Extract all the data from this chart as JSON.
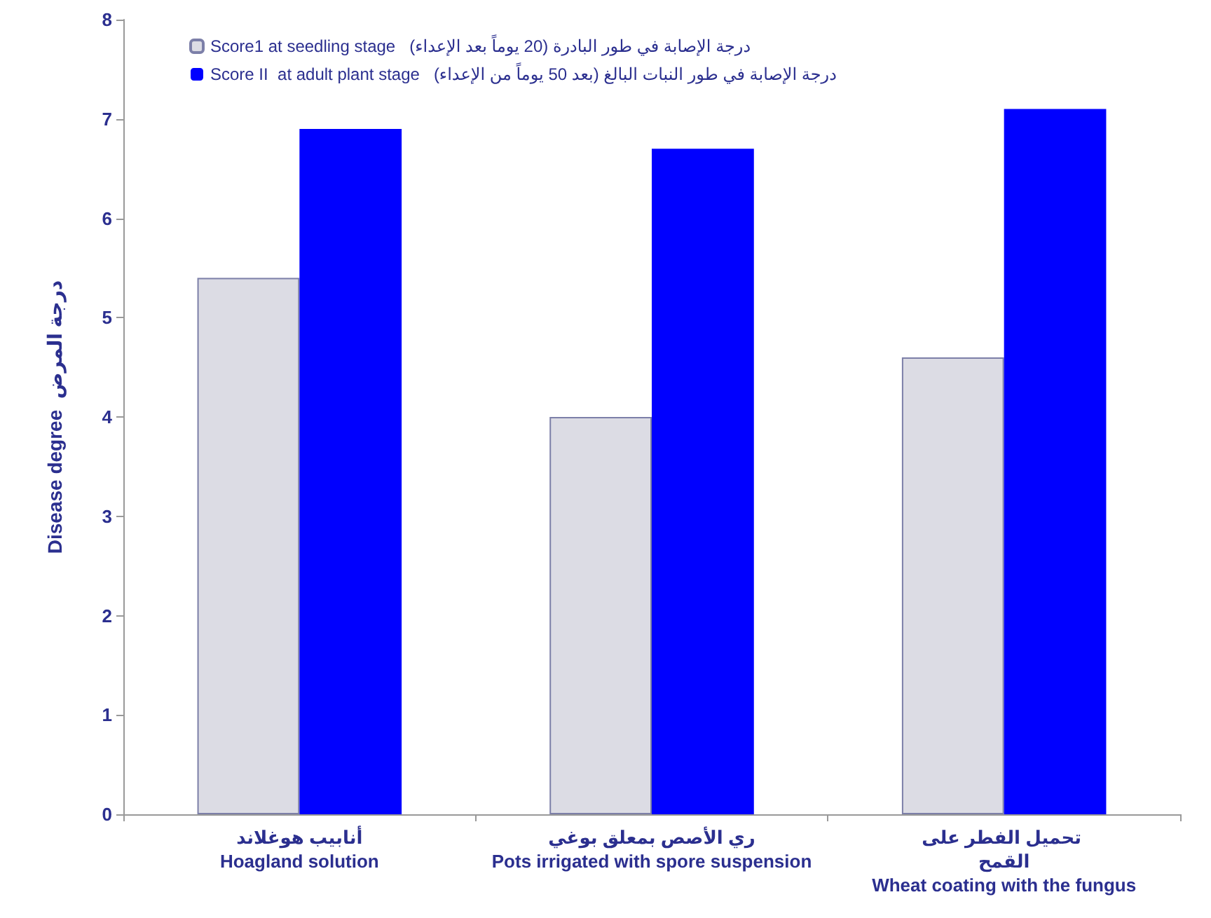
{
  "chart_data": {
    "type": "bar",
    "ylabel": "Disease degree  درجة المرض",
    "categories": [
      "أنابيب هوغلاند\nHoagland solution",
      "ري الأصص بمعلق بوغي\nPots irrigated with spore suspension",
      "تحميل الفطر على القمح\nWheat coating with the fungus"
    ],
    "series": [
      {
        "name": "Score1 at seedling stage   درجة الإصابة في طور البادرة (20 يوماً بعد الإعداء)",
        "color": "#dcdce4",
        "values": [
          5.4,
          4.0,
          4.6
        ]
      },
      {
        "name": "Score II  at adult plant stage   درجة الإصابة في طور النبات البالغ (بعد 50 يوماً من الإعداء)",
        "color": "#0000ff",
        "values": [
          6.9,
          6.7,
          7.1
        ]
      }
    ],
    "ylim": [
      0,
      8
    ],
    "yticks": [
      0,
      1,
      2,
      3,
      4,
      5,
      6,
      7,
      8
    ],
    "grid": false,
    "legend": "top"
  }
}
